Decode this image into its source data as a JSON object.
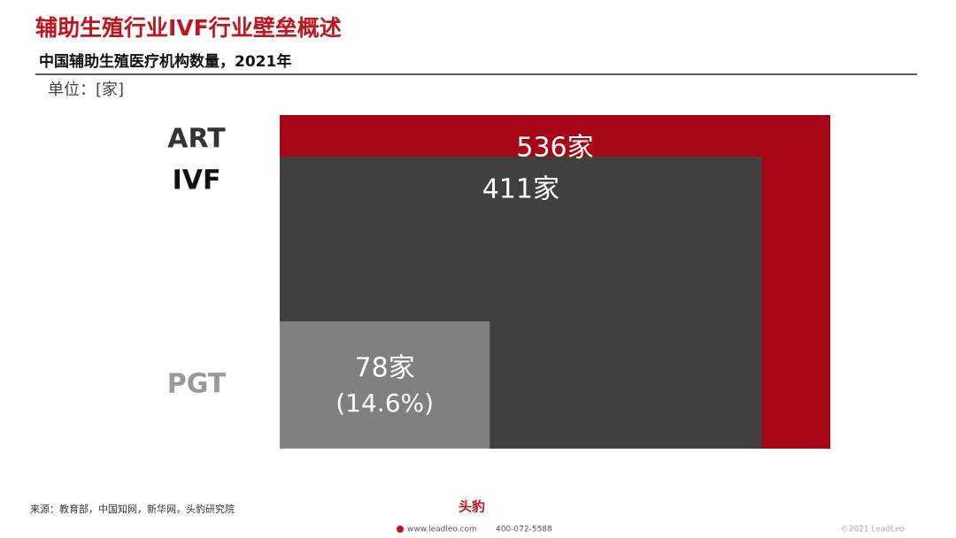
{
  "header": {
    "title": "辅助生殖行业IVF行业壁垒概述",
    "subtitle": "中国辅助生殖医疗机构数量，2021年",
    "unit": "单位：[家]"
  },
  "chart_data": {
    "type": "nested-area",
    "categories": [
      "ART",
      "IVF",
      "PGT"
    ],
    "values": [
      536,
      411,
      78
    ],
    "value_labels": [
      "536家",
      "411家",
      "78家"
    ],
    "colors": [
      "#a50716",
      "#404040",
      "#808080"
    ],
    "annotation": "(14.6%)"
  },
  "footer": {
    "source": "来源：教育部，中国知网，新华网，头豹研究院",
    "logo": "头豹",
    "website": "www.leadleo.com",
    "phone": "400-072-5588",
    "copyright": "©2021 LeadLeo"
  }
}
